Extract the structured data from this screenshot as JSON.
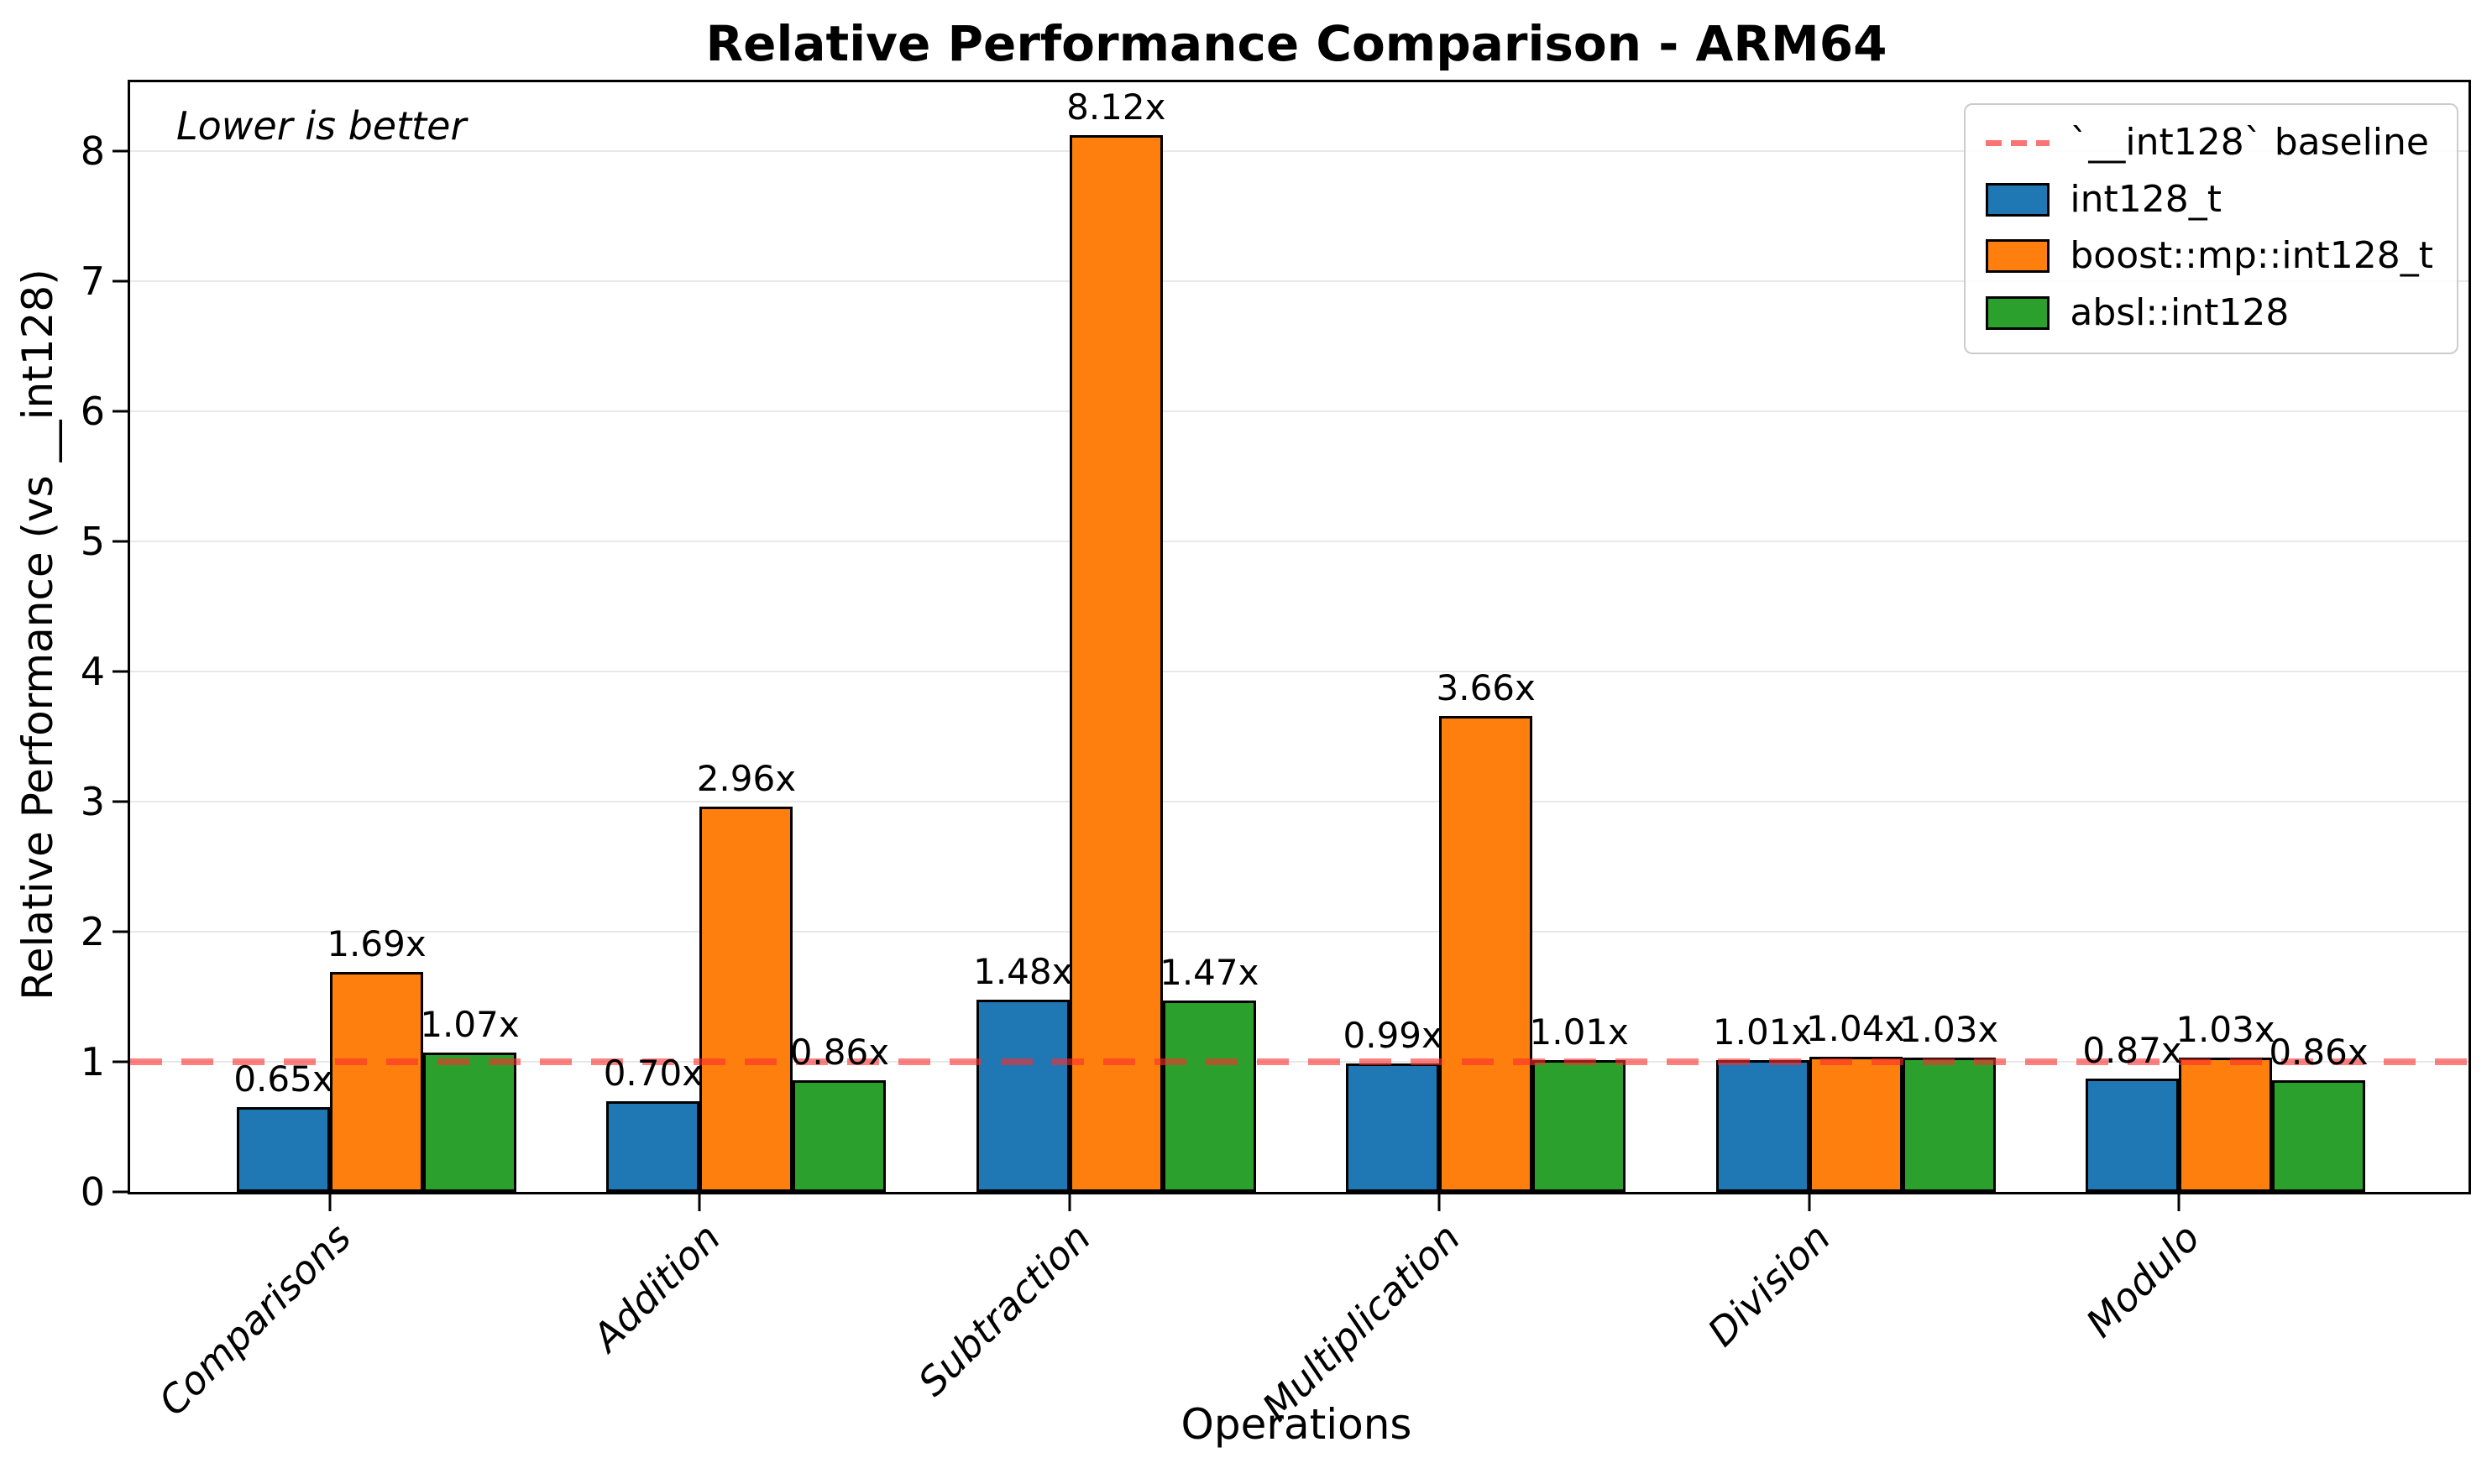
{
  "title": "Relative Performance Comparison - ARM64",
  "annotation": "Lower is better",
  "axes": {
    "xlabel": "Operations",
    "ylabel": "Relative Performance (vs __int128)"
  },
  "legend": {
    "items": [
      {
        "type": "line",
        "label": "`__int128` baseline",
        "color": "#fa4646"
      },
      {
        "type": "swatch",
        "label": "int128_t",
        "color": "#1f77b4"
      },
      {
        "type": "swatch",
        "label": "boost::mp::int128_t",
        "color": "#ff7f0e"
      },
      {
        "type": "swatch",
        "label": "absl::int128",
        "color": "#2ca02c"
      }
    ]
  },
  "chart_data": {
    "type": "bar",
    "title": "Relative Performance Comparison - ARM64",
    "xlabel": "Operations",
    "ylabel": "Relative Performance (vs __int128)",
    "annotation": "Lower is better",
    "categories": [
      "Comparisons",
      "Addition",
      "Subtraction",
      "Multiplication",
      "Division",
      "Modulo"
    ],
    "series": [
      {
        "name": "int128_t",
        "color": "#1f77b4",
        "values": [
          0.65,
          0.7,
          1.48,
          0.99,
          1.01,
          0.87
        ],
        "labels": [
          "0.65x",
          "0.70x",
          "1.48x",
          "0.99x",
          "1.01x",
          "0.87x"
        ]
      },
      {
        "name": "boost::mp::int128_t",
        "color": "#ff7f0e",
        "values": [
          1.69,
          2.96,
          8.12,
          3.66,
          1.04,
          1.03
        ],
        "labels": [
          "1.69x",
          "2.96x",
          "8.12x",
          "3.66x",
          "1.04x",
          "1.03x"
        ]
      },
      {
        "name": "absl::int128",
        "color": "#2ca02c",
        "values": [
          1.07,
          0.86,
          1.47,
          1.01,
          1.03,
          0.86
        ],
        "labels": [
          "1.07x",
          "0.86x",
          "1.47x",
          "1.01x",
          "1.03x",
          "0.86x"
        ]
      }
    ],
    "baseline": {
      "value": 1.0,
      "label": "`__int128` baseline",
      "style": "dashed",
      "color": "red"
    },
    "yticks": [
      0,
      1,
      2,
      3,
      4,
      5,
      6,
      7,
      8
    ],
    "ylim": [
      0,
      8.53
    ],
    "grid": true,
    "legend_position": "upper right",
    "bar_edge_color": "#000000"
  }
}
